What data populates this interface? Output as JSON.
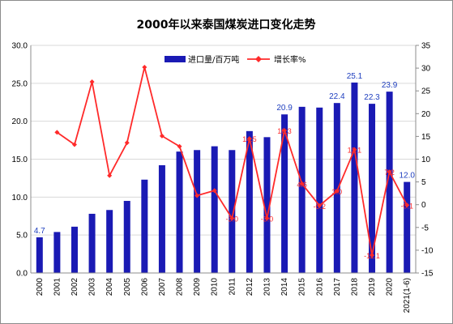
{
  "chart_data": {
    "type": "bar",
    "title": "2000年以来泰国煤炭进口变化走势",
    "categories": [
      "2000",
      "2001",
      "2002",
      "2003",
      "2004",
      "2005",
      "2006",
      "2007",
      "2008",
      "2009",
      "2010",
      "2011",
      "2012",
      "2013",
      "2014",
      "2015",
      "2016",
      "2017",
      "2018",
      "2019",
      "2020",
      "2021(1-6)"
    ],
    "series": [
      {
        "name": "进口量/百万吨",
        "type": "bar",
        "axis": "left",
        "color": "#1a1ab4",
        "values": [
          4.7,
          5.4,
          6.1,
          7.8,
          8.3,
          9.5,
          12.3,
          14.2,
          16.0,
          16.2,
          16.7,
          16.2,
          18.7,
          17.9,
          20.9,
          21.9,
          21.8,
          22.4,
          25.1,
          22.3,
          23.9,
          12.0
        ],
        "labels": [
          "4.7",
          "",
          "",
          "",
          "",
          "",
          "",
          "",
          "",
          "",
          "",
          "",
          "",
          "",
          "20.9",
          "",
          "",
          "22.4",
          "25.1",
          "22.3",
          "23.9",
          "12.0"
        ]
      },
      {
        "name": "增长率%",
        "type": "line",
        "axis": "right",
        "color": "#ff2a2a",
        "values": [
          null,
          15.9,
          13.2,
          27.0,
          6.4,
          13.6,
          30.2,
          15.1,
          12.8,
          2.0,
          3.1,
          -3.0,
          14.5,
          -3.0,
          16.3,
          4.6,
          -0.2,
          3.0,
          12.1,
          -11.1,
          7.2,
          -0.1
        ],
        "labels": [
          "",
          "",
          "",
          "",
          "",
          "",
          "",
          "",
          "",
          "",
          "",
          "-3.0",
          "14.5",
          "-3.0",
          "16.3",
          "4.6",
          "-0.2",
          "3.0",
          "12.1",
          "-11.1",
          "7.2",
          "-0.1"
        ]
      }
    ],
    "y_left": {
      "min": 0,
      "max": 30,
      "step": 5,
      "ticks": [
        "0.0",
        "5.0",
        "10.0",
        "15.0",
        "20.0",
        "25.0",
        "30.0"
      ]
    },
    "y_right": {
      "min": -15,
      "max": 35,
      "step": 5,
      "ticks": [
        "-15",
        "-10",
        "-5",
        "0",
        "5",
        "10",
        "15",
        "20",
        "25",
        "30",
        "35"
      ]
    },
    "grid": true,
    "legend": {
      "position": "top",
      "items": [
        "进口量/百万吨",
        "增长率%"
      ]
    }
  }
}
